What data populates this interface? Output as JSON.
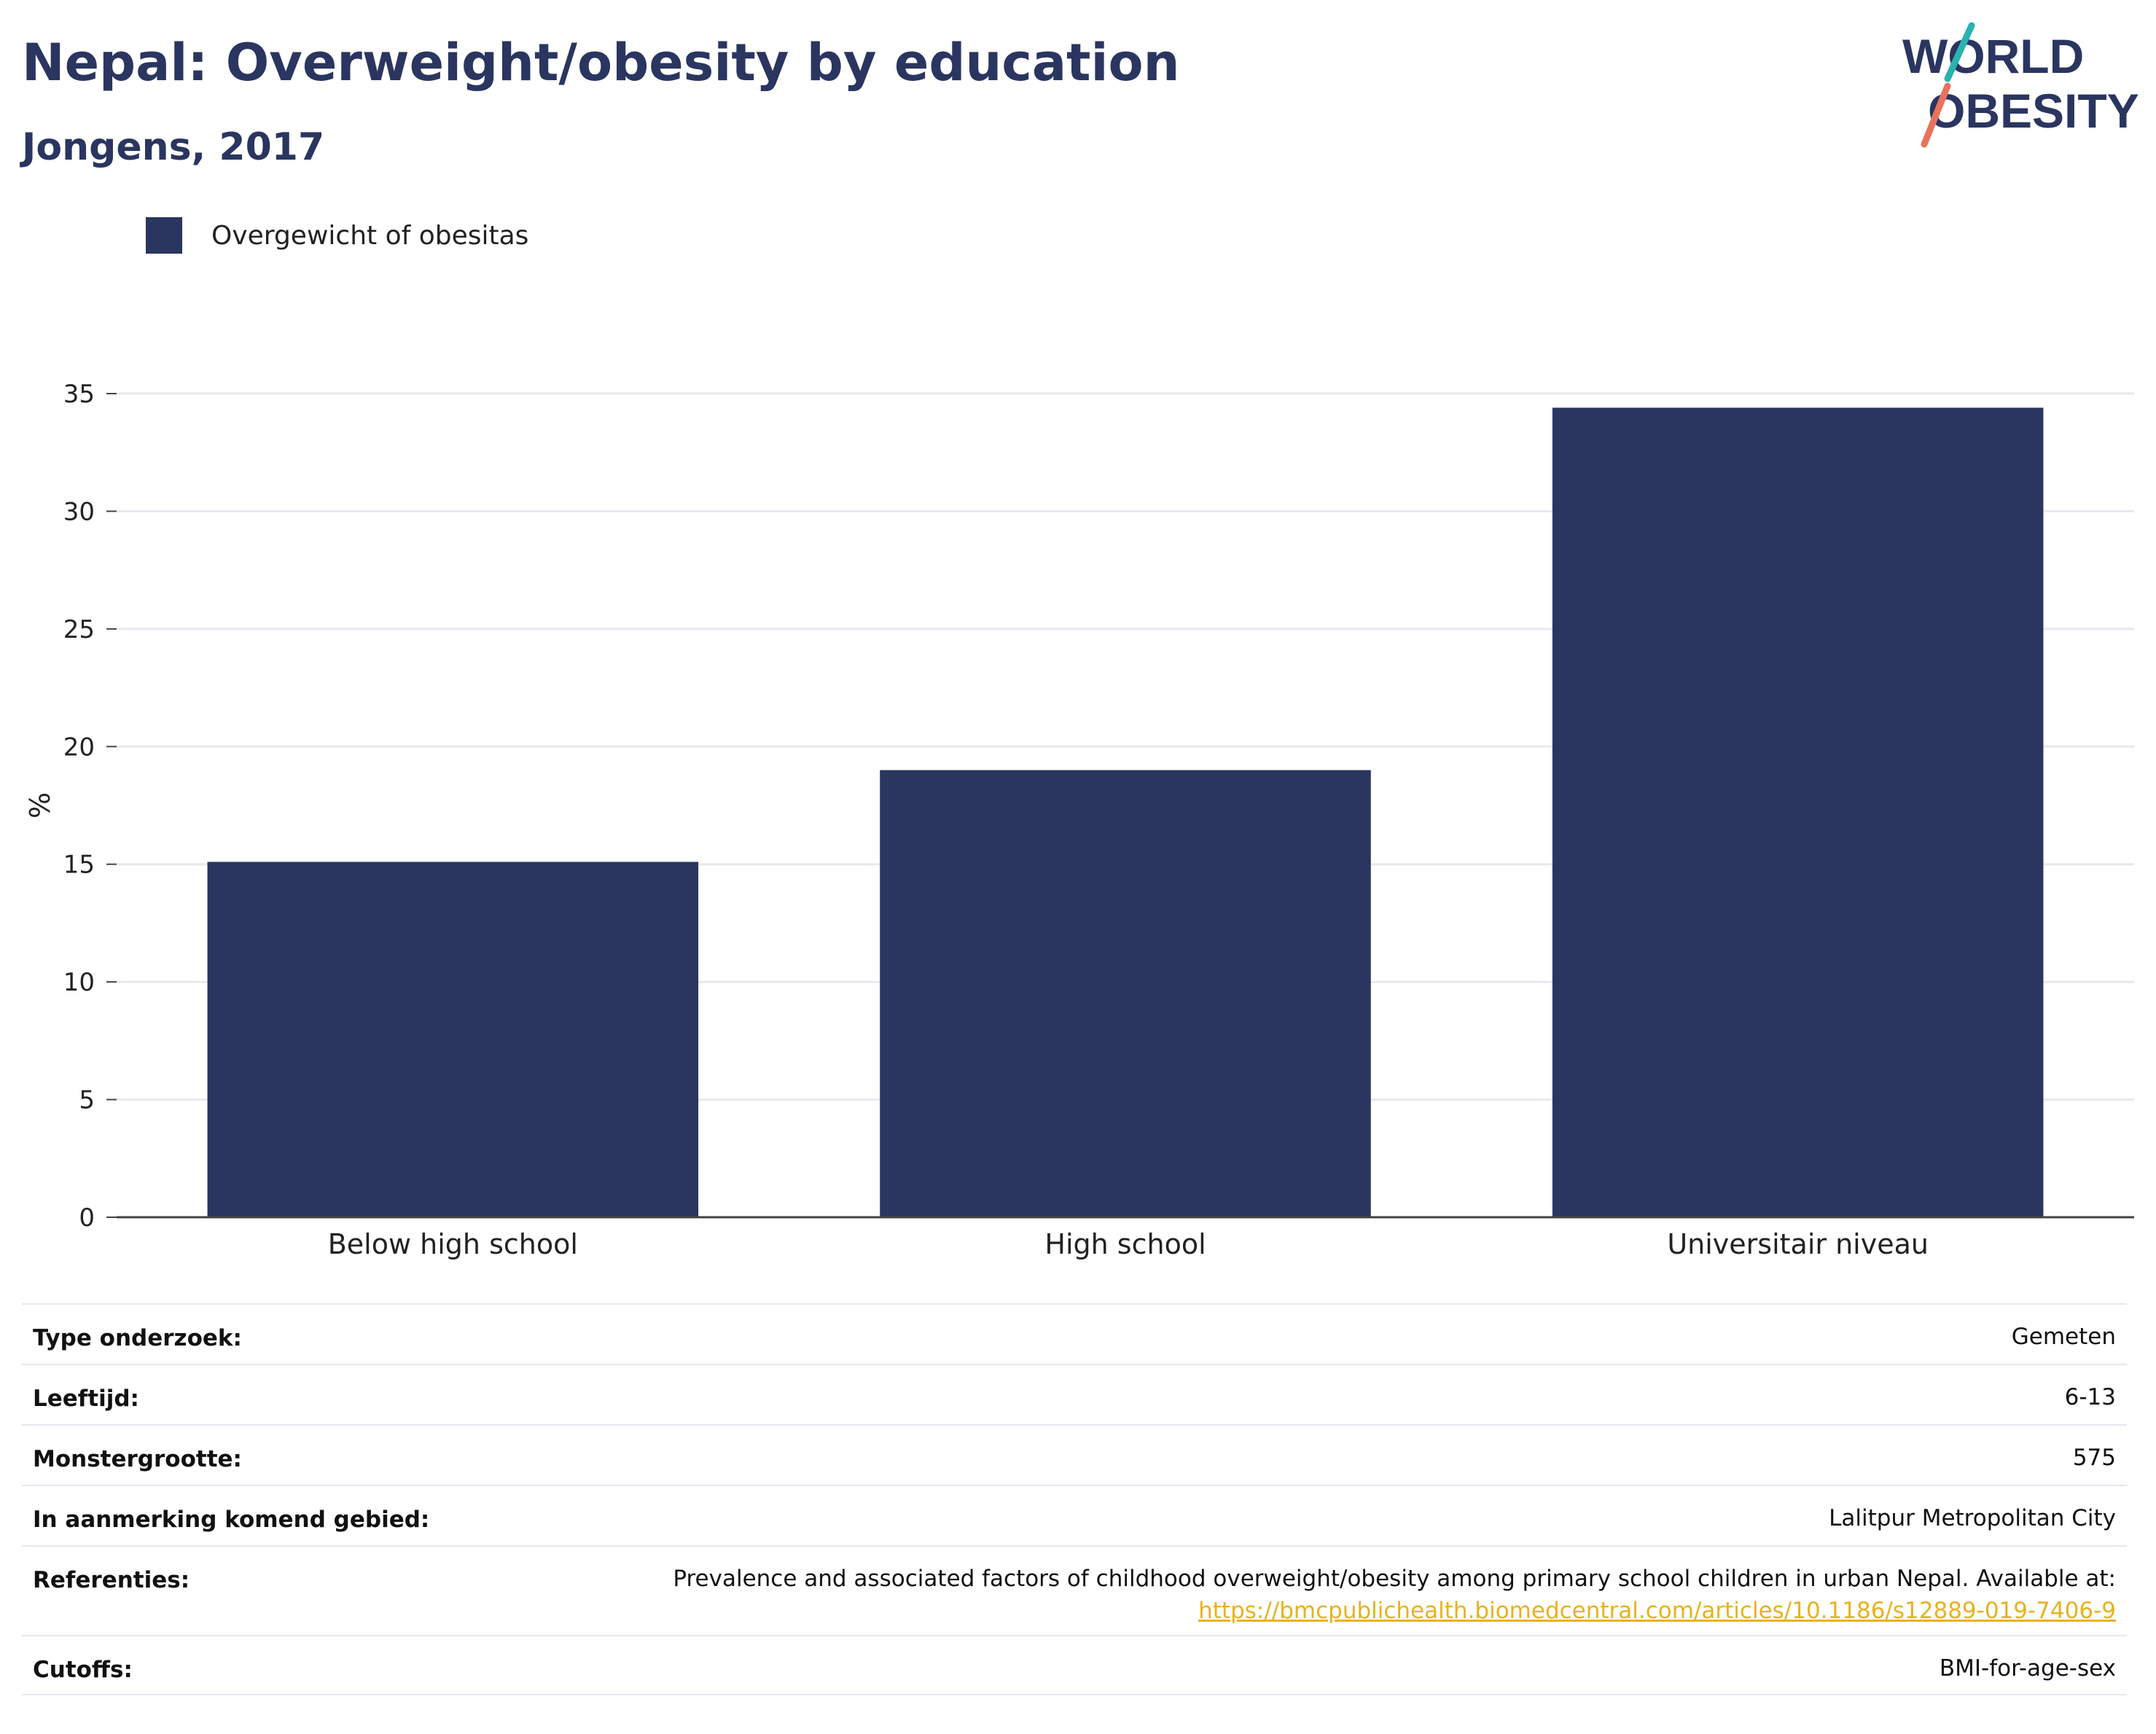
{
  "header": {
    "title": "Nepal: Overweight/obesity by education",
    "subtitle": "Jongens, 2017",
    "logo": {
      "line1": "WORLD",
      "line2": "OBESITY"
    }
  },
  "colors": {
    "bar": "#2a3560",
    "brand_navy": "#2a3560",
    "logo_teal": "#2ab3b0",
    "logo_coral": "#e8735c",
    "link": "#e8b21e"
  },
  "legend": {
    "label": "Overgewicht of obesitas",
    "placement": "top-left"
  },
  "chart_data": {
    "type": "bar",
    "categories": [
      "Below high school",
      "High school",
      "Universitair niveau"
    ],
    "series": [
      {
        "name": "Overgewicht of obesitas",
        "values": [
          15.1,
          19.0,
          34.4
        ]
      }
    ],
    "xlabel": "",
    "ylabel": "%",
    "ylim": [
      0,
      35
    ],
    "yticks": [
      0,
      5,
      10,
      15,
      20,
      25,
      30,
      35
    ],
    "grid": true
  },
  "info": {
    "rows": [
      {
        "label": "Type onderzoek:",
        "value": "Gemeten"
      },
      {
        "label": "Leeftijd:",
        "value": "6-13"
      },
      {
        "label": "Monstergrootte:",
        "value": "575"
      },
      {
        "label": "In aanmerking komend gebied:",
        "value": "Lalitpur Metropolitan City"
      }
    ],
    "reference": {
      "label": "Referenties:",
      "text": "Prevalence and associated factors of childhood overweight/obesity among primary school children in urban Nepal. Available at:",
      "link": "https://bmcpublichealth.biomedcentral.com/articles/10.1186/s12889-019-7406-9"
    },
    "cutoffs": {
      "label": "Cutoffs:",
      "value": "BMI-for-age-sex"
    }
  }
}
